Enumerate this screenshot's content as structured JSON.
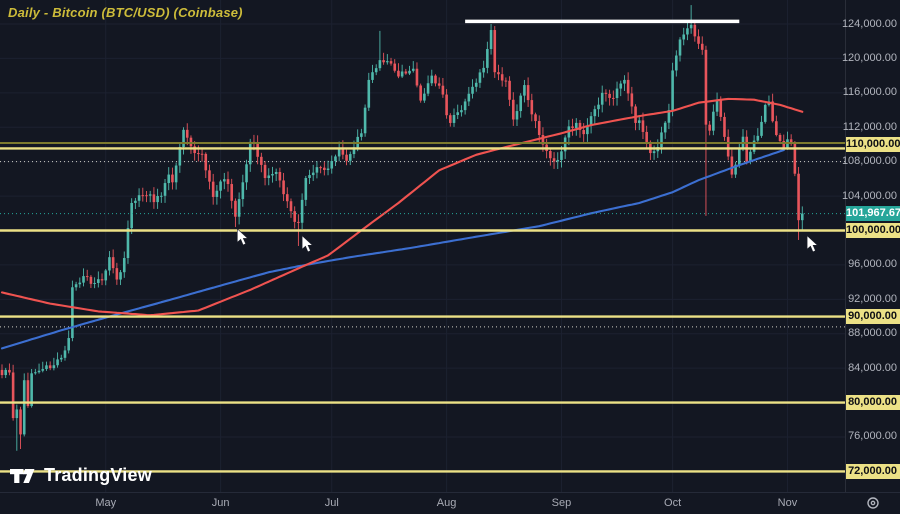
{
  "header": {
    "title": "Daily - Bitcoin (BTC/USD) (Coinbase)"
  },
  "watermark": {
    "label": "TradingView",
    "icon": "tradingview-logo-icon"
  },
  "price_axis": {
    "gridline_labels": [
      {
        "text": "124,000.00",
        "price": 124000
      },
      {
        "text": "120,000.00",
        "price": 120000
      },
      {
        "text": "116,000.00",
        "price": 116000
      },
      {
        "text": "112,000.00",
        "price": 112000
      },
      {
        "text": "108,000.00",
        "price": 108000
      },
      {
        "text": "104,000.00",
        "price": 104000
      },
      {
        "text": "96,000.00",
        "price": 96000
      },
      {
        "text": "92,000.00",
        "price": 92000
      },
      {
        "text": "88,000.00",
        "price": 88000
      },
      {
        "text": "84,000.00",
        "price": 84000
      },
      {
        "text": "76,000.00",
        "price": 76000
      }
    ],
    "level_badges": [
      {
        "text": "110,000.00",
        "price": 110000
      },
      {
        "text": "100,000.00",
        "price": 100000
      },
      {
        "text": "90,000.00",
        "price": 90000
      },
      {
        "text": "80,000.00",
        "price": 80000
      },
      {
        "text": "72,000.00",
        "price": 72000
      }
    ],
    "last_price_badge": {
      "text": "101,967.67",
      "price": 101967.67
    },
    "settings_icon": "gear-icon"
  },
  "time_axis": {
    "months": [
      {
        "label": "May",
        "day": 28
      },
      {
        "label": "Jun",
        "day": 59
      },
      {
        "label": "Jul",
        "day": 89
      },
      {
        "label": "Aug",
        "day": 120
      },
      {
        "label": "Sep",
        "day": 151
      },
      {
        "label": "Oct",
        "day": 181
      },
      {
        "label": "Nov",
        "day": 212
      }
    ]
  },
  "chart_data": {
    "type": "candlestick",
    "title": "Daily - Bitcoin (BTC/USD) (Coinbase)",
    "timeframe": "Daily",
    "last_price": 101967.67,
    "y_axis": {
      "visible_min": 69600,
      "visible_max": 126800,
      "tick_step": 4000,
      "grid": true
    },
    "x_axis": {
      "unit": "day",
      "day0_near": "early April",
      "visible_days": 217
    },
    "units_note": "candle/ma values in USD thousands",
    "support_resistance_levels": [
      {
        "price": 110000,
        "style": "double-yellow"
      },
      {
        "price": 100000,
        "style": "yellow"
      },
      {
        "price": 90000,
        "style": "yellow"
      },
      {
        "price": 80000,
        "style": "yellow"
      },
      {
        "price": 72000,
        "style": "yellow"
      }
    ],
    "dotted_levels": [
      {
        "price": 108000,
        "style": "dotted"
      },
      {
        "price": 88800,
        "style": "dotted"
      }
    ],
    "resistance_segment": {
      "price": 124300,
      "from_day": 125,
      "to_day": 199,
      "color": "#ffffff"
    },
    "candles": {
      "anchors_format": "[day, close, high?, low?]",
      "anchors": [
        [
          0,
          83.2
        ],
        [
          2,
          83.5
        ],
        [
          3,
          78.2
        ],
        [
          4,
          79.2,
          null,
          74.4
        ],
        [
          5,
          76.3,
          null,
          74.6
        ],
        [
          6,
          82.6
        ],
        [
          7,
          79.6
        ],
        [
          8,
          83.4
        ],
        [
          10,
          83.7
        ],
        [
          13,
          84.0
        ],
        [
          16,
          85.2
        ],
        [
          18,
          87.5
        ],
        [
          19,
          93.4
        ],
        [
          22,
          94.7
        ],
        [
          24,
          93.8
        ],
        [
          27,
          94.2
        ],
        [
          29,
          96.9
        ],
        [
          31,
          94.3
        ],
        [
          33,
          96.8
        ],
        [
          35,
          103.2
        ],
        [
          38,
          104.1
        ],
        [
          40,
          104.2
        ],
        [
          41,
          103.3
        ],
        [
          45,
          106.5
        ],
        [
          46,
          105.6
        ],
        [
          48,
          109.7
        ],
        [
          49,
          111.7,
          112.0,
          null
        ],
        [
          52,
          109.0
        ],
        [
          54,
          108.9
        ],
        [
          57,
          103.9
        ],
        [
          59,
          105.7
        ],
        [
          61,
          105.4
        ],
        [
          63,
          101.6,
          null,
          100.4
        ],
        [
          65,
          105.6
        ],
        [
          67,
          110.3
        ],
        [
          68,
          110.2
        ],
        [
          71,
          106.1
        ],
        [
          74,
          106.8
        ],
        [
          77,
          103.4
        ],
        [
          79,
          101.0
        ],
        [
          80,
          100.9,
          null,
          98.2
        ],
        [
          82,
          106.1
        ],
        [
          86,
          107.3
        ],
        [
          88,
          107.2
        ],
        [
          91,
          109.6
        ],
        [
          93,
          108.1
        ],
        [
          97,
          111.3
        ],
        [
          99,
          117.5
        ],
        [
          102,
          119.8,
          123.2,
          null
        ],
        [
          105,
          119.4
        ],
        [
          107,
          117.9
        ],
        [
          111,
          118.8
        ],
        [
          113,
          115.1
        ],
        [
          116,
          118.0
        ],
        [
          119,
          115.8
        ],
        [
          120,
          113.4
        ],
        [
          121,
          112.5
        ],
        [
          125,
          115.0
        ],
        [
          127,
          116.7
        ],
        [
          130,
          118.9
        ],
        [
          132,
          123.3,
          124.0,
          null
        ],
        [
          133,
          118.4
        ],
        [
          136,
          117.4
        ],
        [
          138,
          112.9
        ],
        [
          141,
          116.9
        ],
        [
          143,
          113.5
        ],
        [
          145,
          111.1
        ],
        [
          148,
          108.4
        ],
        [
          150,
          108.2
        ],
        [
          151,
          109.2
        ],
        [
          153,
          112.1
        ],
        [
          157,
          111.2
        ],
        [
          160,
          114.1
        ],
        [
          162,
          116.0
        ],
        [
          165,
          115.4
        ],
        [
          168,
          117.5
        ],
        [
          171,
          112.5
        ],
        [
          172,
          112.8
        ],
        [
          175,
          109.0
        ],
        [
          177,
          109.7
        ],
        [
          180,
          114.0
        ],
        [
          181,
          118.6
        ],
        [
          183,
          122.2
        ],
        [
          185,
          123.5
        ],
        [
          186,
          123.9,
          126.2,
          null
        ],
        [
          188,
          121.7
        ],
        [
          189,
          121.0
        ],
        [
          190,
          112.3,
          null,
          101.7
        ],
        [
          191,
          111.6
        ],
        [
          193,
          115.2
        ],
        [
          194,
          113.2
        ],
        [
          196,
          108.6
        ],
        [
          197,
          106.5
        ],
        [
          200,
          110.9
        ],
        [
          201,
          108.0
        ],
        [
          204,
          111.0
        ],
        [
          206,
          114.6
        ],
        [
          207,
          115.0
        ],
        [
          209,
          111.1
        ],
        [
          211,
          109.6
        ],
        [
          212,
          110.6
        ],
        [
          213,
          110.1
        ],
        [
          214,
          106.6
        ],
        [
          215,
          101.2,
          null,
          98.9
        ],
        [
          216,
          101.97,
          102.8,
          99.9
        ]
      ]
    },
    "ma_fast_red": [
      [
        0,
        92.8
      ],
      [
        13,
        91.5
      ],
      [
        26,
        90.6
      ],
      [
        40,
        90.15
      ],
      [
        53,
        90.7
      ],
      [
        67,
        93.1
      ],
      [
        80,
        95.6
      ],
      [
        88,
        97.1
      ],
      [
        96,
        99.7
      ],
      [
        107,
        103.2
      ],
      [
        118,
        107.0
      ],
      [
        128,
        108.8
      ],
      [
        136,
        109.7
      ],
      [
        151,
        111.3
      ],
      [
        159,
        112.25
      ],
      [
        172,
        113.3
      ],
      [
        181,
        113.9
      ],
      [
        188,
        114.85
      ],
      [
        196,
        115.3
      ],
      [
        203,
        115.2
      ],
      [
        210,
        114.6
      ],
      [
        216,
        113.8
      ]
    ],
    "ma_slow_blue": [
      [
        0,
        86.3
      ],
      [
        16,
        88.4
      ],
      [
        29,
        90.0
      ],
      [
        45,
        91.9
      ],
      [
        59,
        93.6
      ],
      [
        72,
        95.15
      ],
      [
        80,
        95.85
      ],
      [
        94,
        96.9
      ],
      [
        110,
        97.95
      ],
      [
        129,
        99.35
      ],
      [
        145,
        100.5
      ],
      [
        159,
        102.0
      ],
      [
        172,
        103.2
      ],
      [
        181,
        104.45
      ],
      [
        188,
        105.85
      ],
      [
        199,
        107.6
      ],
      [
        211,
        109.35
      ]
    ],
    "annotations": {
      "cursor_arrows": [
        {
          "day": 63.5,
          "price": 100.2
        },
        {
          "day": 81,
          "price": 99.4
        },
        {
          "day": 217.3,
          "price": 99.4
        }
      ]
    }
  },
  "colors": {
    "background": "#131722",
    "grid": "#1c2130",
    "axis_text": "#b2b5be",
    "month_text": "#a8abb5",
    "candle_up": "#4fb8ab",
    "candle_down": "#e8555c",
    "ma_fast": "#ef5350",
    "ma_slow": "#3c6fd1",
    "level_yellow": "#ece186",
    "level_yellow_dark": "#7d7b2e",
    "resistance_white": "#ffffff",
    "last_price_badge": "#26a69a",
    "badge_text": "#0e0f14",
    "dotted_level": "#d0d0c6",
    "title": "#cdbc3a",
    "arrow": "#ffffff"
  }
}
